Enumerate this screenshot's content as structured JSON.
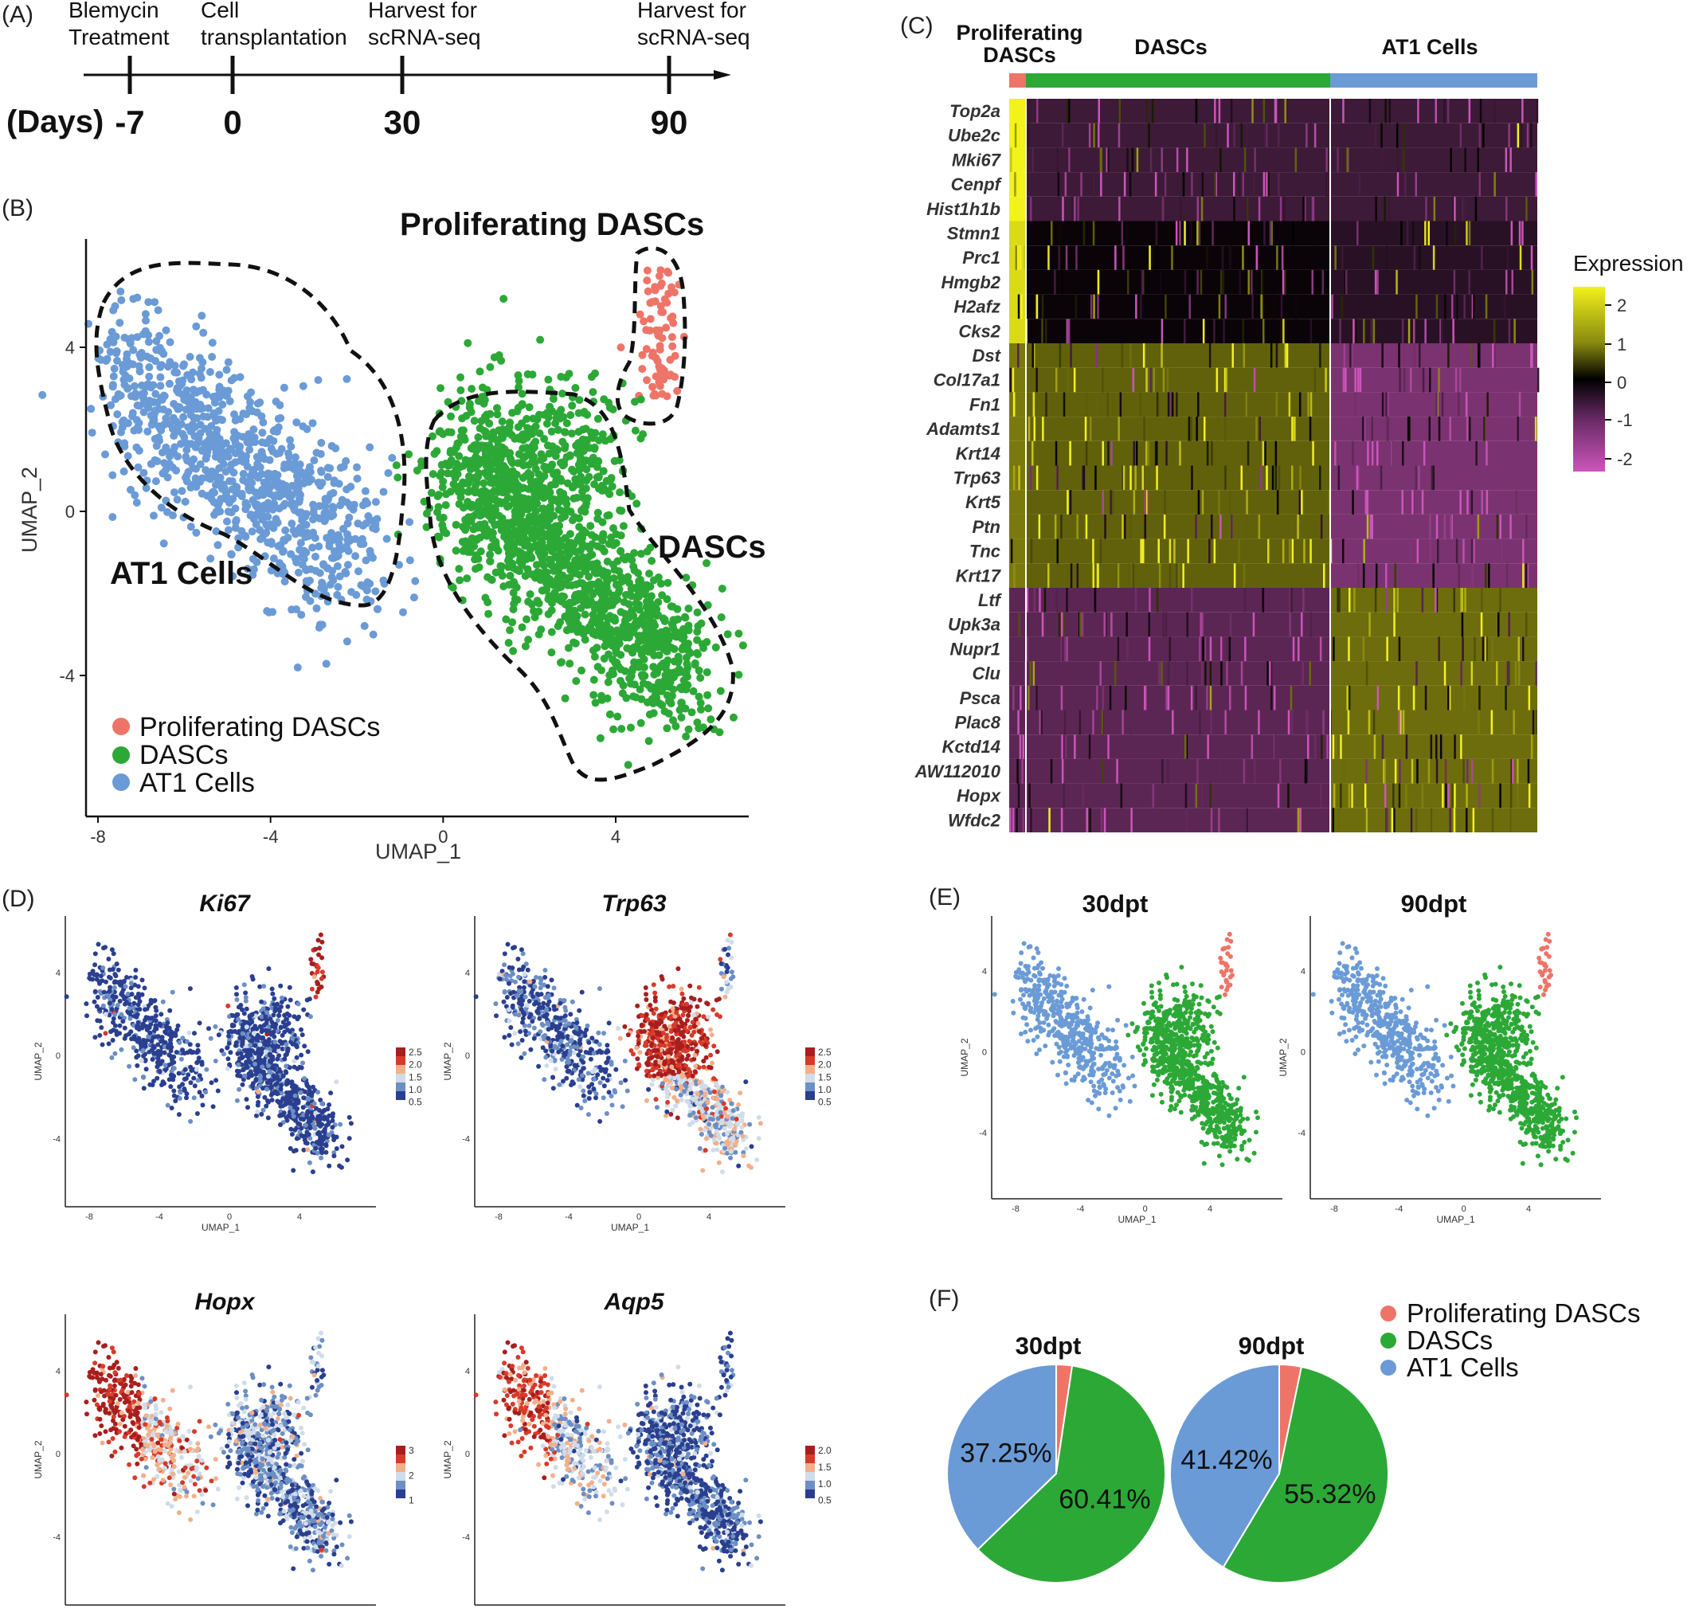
{
  "panels": {
    "A": {
      "label": "(A)",
      "axis_label": "(Days)",
      "events": [
        {
          "day": "-7",
          "line1": "Blemycin",
          "line2": "Treatment"
        },
        {
          "day": "0",
          "line1": "Cell",
          "line2": "transplantation"
        },
        {
          "day": "30",
          "line1": "Harvest for",
          "line2": "scRNA-seq"
        },
        {
          "day": "90",
          "line1": "Harvest for",
          "line2": "scRNA-seq"
        }
      ]
    },
    "B": {
      "label": "(B)",
      "xlabel": "UMAP_1",
      "ylabel": "UMAP_2",
      "cluster_labels": {
        "proliferating": "Proliferating DASCs",
        "dascs": "DASCs",
        "at1": "AT1 Cells"
      },
      "legend": [
        "Proliferating DASCs",
        "DASCs",
        "AT1 Cells"
      ]
    },
    "C": {
      "label": "(C)",
      "groups": [
        {
          "line1": "Proliferating",
          "line2": "DASCs"
        },
        {
          "line1": "DASCs",
          "line2": ""
        },
        {
          "line1": "AT1 Cells",
          "line2": ""
        }
      ],
      "legend_title": "Expression"
    },
    "D": {
      "label": "(D)"
    },
    "E": {
      "label": "(E)"
    },
    "F": {
      "label": "(F)"
    }
  },
  "colors": {
    "proliferating": "#ee7468",
    "dascs": "#2ca836",
    "at1": "#6b9bd6",
    "heat_high": "#f2f21c",
    "heat_mid": "#000000",
    "heat_low": "#cc55bb"
  },
  "chart_data": [
    {
      "id": "B",
      "type": "scatter",
      "title": "",
      "xlabel": "UMAP_1",
      "ylabel": "UMAP_2",
      "xticks": [
        -8,
        -4,
        0,
        4
      ],
      "yticks": [
        -4,
        0,
        4
      ],
      "xlim": [
        -8.5,
        7.2
      ],
      "ylim": [
        -7.3,
        6.5
      ],
      "legend": [
        "Proliferating DASCs",
        "DASCs",
        "AT1 Cells"
      ],
      "legend_placement": "bottom-left"
    },
    {
      "id": "C",
      "type": "heatmap",
      "groups": [
        "Proliferating DASCs",
        "DASCs",
        "AT1 Cells"
      ],
      "genes": [
        "Top2a",
        "Ube2c",
        "Mki67",
        "Cenpf",
        "Hist1h1b",
        "Stmn1",
        "Prc1",
        "Hmgb2",
        "H2afz",
        "Cks2",
        "Dst",
        "Col17a1",
        "Fn1",
        "Adamts1",
        "Krt14",
        "Trp63",
        "Krt5",
        "Ptn",
        "Tnc",
        "Krt17",
        "Ltf",
        "Upk3a",
        "Nupr1",
        "Clu",
        "Psca",
        "Plac8",
        "Kctd14",
        "AW112010",
        "Hopx",
        "Wfdc2"
      ],
      "legend_title": "Expression",
      "colorbar_ticks": [
        2,
        1,
        0,
        -1,
        -2
      ]
    },
    {
      "id": "D",
      "type": "scatter",
      "xlabel": "UMAP_1",
      "ylabel": "UMAP_2",
      "xticks": [
        -8,
        -4,
        0,
        4
      ],
      "yticks": [
        -4,
        0,
        4
      ],
      "subplots": [
        {
          "gene": "Ki67",
          "colorbar_ticks": [
            "2.5",
            "2.0",
            "1.5",
            "1.0",
            "0.5"
          ]
        },
        {
          "gene": "Trp63",
          "colorbar_ticks": [
            "2.5",
            "2.0",
            "1.5",
            "1.0",
            "0.5"
          ]
        },
        {
          "gene": "Hopx",
          "colorbar_ticks": [
            "3",
            "2",
            "1"
          ]
        },
        {
          "gene": "Aqp5",
          "colorbar_ticks": [
            "2.0",
            "1.5",
            "1.0",
            "0.5"
          ]
        }
      ]
    },
    {
      "id": "E",
      "type": "scatter",
      "xlabel": "UMAP_1",
      "ylabel": "UMAP_2",
      "xticks": [
        -8,
        -4,
        0,
        4
      ],
      "yticks": [
        -4,
        0,
        4
      ],
      "subplots": [
        {
          "title": "30dpt"
        },
        {
          "title": "90dpt"
        }
      ]
    },
    {
      "id": "F",
      "type": "pie",
      "legend": [
        "Proliferating DASCs",
        "DASCs",
        "AT1 Cells"
      ],
      "pies": [
        {
          "title": "30dpt",
          "slices": [
            {
              "name": "Proliferating DASCs",
              "value": 2.34
            },
            {
              "name": "DASCs",
              "value": 60.41,
              "label": "60.41%"
            },
            {
              "name": "AT1 Cells",
              "value": 37.25,
              "label": "37.25%"
            }
          ]
        },
        {
          "title": "90dpt",
          "slices": [
            {
              "name": "Proliferating DASCs",
              "value": 3.26
            },
            {
              "name": "DASCs",
              "value": 55.32,
              "label": "55.32%"
            },
            {
              "name": "AT1 Cells",
              "value": 41.42,
              "label": "41.42%"
            }
          ]
        }
      ]
    }
  ]
}
